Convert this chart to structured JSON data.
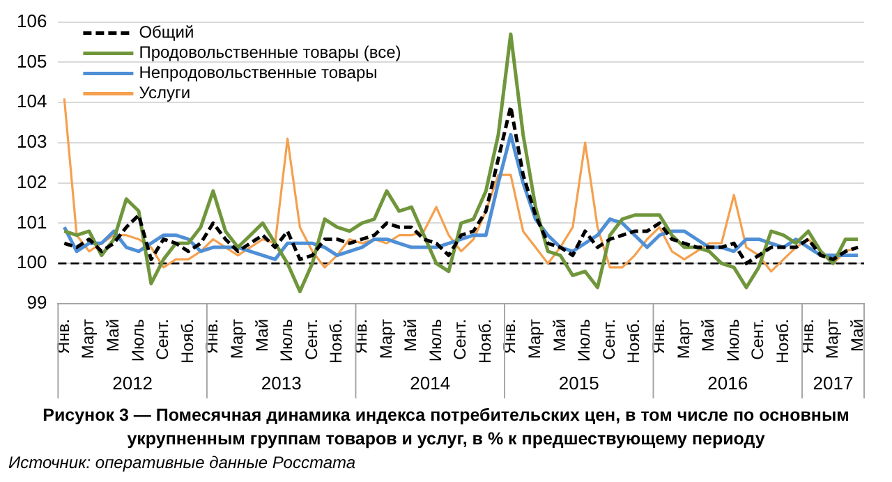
{
  "chart_data": {
    "type": "line",
    "title": "Рисунок 3 — Помесячная динамика индекса потребительских цен, в том числе по основным укрупненным группам товаров и услуг, в % к предшествующему периоду",
    "categories": [
      "Янв.",
      null,
      "Март",
      null,
      "Май",
      null,
      "Июль",
      null,
      "Сент.",
      null,
      "Нояб.",
      null,
      "Янв.",
      null,
      "Март",
      null,
      "Май",
      null,
      "Июль",
      null,
      "Сент.",
      null,
      "Нояб.",
      null,
      "Янв.",
      null,
      "Март",
      null,
      "Май",
      null,
      "Июль",
      null,
      "Сент.",
      null,
      "Нояб.",
      null,
      "Янв.",
      null,
      "Март",
      null,
      "Май",
      null,
      "Июль",
      null,
      "Сент.",
      null,
      "Нояб.",
      null,
      "Янв.",
      null,
      "Март",
      null,
      "Май",
      null,
      "Июль",
      null,
      "Сент.",
      null,
      "Нояб.",
      null,
      "Янв.",
      null,
      "Март",
      null,
      "Май"
    ],
    "series": [
      {
        "name": "Общий",
        "color": "#000000",
        "line_style": "dashed",
        "values": [
          100.5,
          100.4,
          100.6,
          100.3,
          100.5,
          100.9,
          101.2,
          100.1,
          100.6,
          100.5,
          100.3,
          100.5,
          101.0,
          100.6,
          100.3,
          100.5,
          100.7,
          100.4,
          100.8,
          100.1,
          100.2,
          100.6,
          100.6,
          100.5,
          100.6,
          100.7,
          101.0,
          100.9,
          100.9,
          100.6,
          100.5,
          100.2,
          100.7,
          100.8,
          101.3,
          102.6,
          103.9,
          102.2,
          101.2,
          100.5,
          100.4,
          100.2,
          100.8,
          100.4,
          100.6,
          100.7,
          100.8,
          100.8,
          101.0,
          100.6,
          100.5,
          100.4,
          100.4,
          100.4,
          100.5,
          100.0,
          100.2,
          100.4,
          100.4,
          100.4,
          100.6,
          100.2,
          100.1,
          100.3,
          100.4
        ]
      },
      {
        "name": "Продовольственные товары (все)",
        "color": "#70963c",
        "values": [
          100.8,
          100.7,
          100.8,
          100.2,
          100.6,
          101.6,
          101.3,
          99.5,
          100.1,
          100.5,
          100.5,
          100.9,
          101.8,
          100.8,
          100.4,
          100.7,
          101.0,
          100.5,
          100.0,
          99.3,
          100.0,
          101.1,
          100.9,
          100.8,
          101.0,
          101.1,
          101.8,
          101.3,
          101.4,
          100.7,
          100.0,
          99.8,
          101.0,
          101.1,
          101.8,
          103.2,
          105.7,
          103.2,
          101.4,
          100.3,
          100.2,
          99.7,
          99.8,
          99.4,
          100.7,
          101.1,
          101.2,
          101.2,
          101.2,
          100.7,
          100.4,
          100.4,
          100.3,
          100.0,
          99.9,
          99.4,
          99.9,
          100.8,
          100.7,
          100.5,
          100.8,
          100.3,
          100.0,
          100.6,
          100.6
        ]
      },
      {
        "name": "Непродовольственные товары",
        "color": "#4f8fd6",
        "values": [
          100.9,
          100.3,
          100.5,
          100.5,
          100.8,
          100.4,
          100.3,
          100.5,
          100.7,
          100.7,
          100.6,
          100.3,
          100.4,
          100.4,
          100.4,
          100.3,
          100.2,
          100.1,
          100.5,
          100.5,
          100.5,
          100.4,
          100.2,
          100.3,
          100.4,
          100.6,
          100.6,
          100.5,
          100.4,
          100.4,
          100.4,
          100.5,
          100.6,
          100.7,
          100.7,
          102.0,
          103.2,
          102.0,
          101.1,
          100.7,
          100.4,
          100.3,
          100.5,
          100.7,
          101.1,
          101.0,
          100.7,
          100.4,
          100.7,
          100.8,
          100.8,
          100.6,
          100.4,
          100.4,
          100.3,
          100.6,
          100.6,
          100.5,
          100.4,
          100.6,
          100.4,
          100.2,
          100.2,
          100.2,
          100.2
        ]
      },
      {
        "name": "Услуги",
        "color": "#f5a04e",
        "values": [
          104.1,
          100.7,
          100.3,
          100.5,
          100.7,
          100.7,
          100.6,
          100.4,
          99.9,
          100.1,
          100.1,
          100.3,
          100.6,
          100.4,
          100.2,
          100.4,
          100.6,
          100.5,
          103.1,
          100.9,
          100.3,
          99.9,
          100.2,
          100.6,
          100.5,
          100.6,
          100.5,
          100.7,
          100.7,
          100.8,
          101.4,
          100.7,
          100.3,
          100.6,
          101.3,
          102.2,
          102.2,
          100.8,
          100.4,
          100.0,
          100.4,
          100.9,
          103.0,
          100.9,
          99.9,
          99.9,
          100.2,
          100.6,
          100.9,
          100.3,
          100.1,
          100.3,
          100.5,
          100.5,
          101.7,
          100.4,
          100.2,
          99.8,
          100.1,
          100.4,
          100.6,
          100.3,
          100.0,
          100.3,
          100.4
        ]
      }
    ],
    "ylim": [
      99,
      106
    ],
    "yticks": [
      99,
      100,
      101,
      102,
      103,
      104,
      105,
      106
    ],
    "ref_lines": [
      {
        "axis": "y",
        "value": 100,
        "color": "#000000",
        "line_style": "dashed"
      }
    ],
    "annotations": [
      "2012",
      "2013",
      "2014",
      "2015",
      "2016",
      "2017",
      "Источник: оперативные данные Росстата"
    ],
    "grid": "y",
    "legend": "top left",
    "marker": "none"
  }
}
